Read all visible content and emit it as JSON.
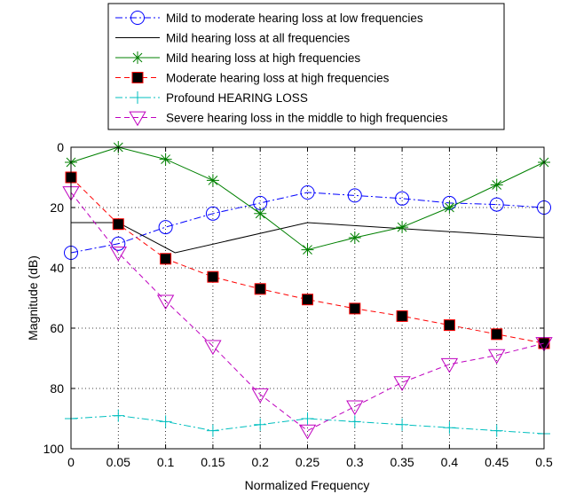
{
  "chart_data": {
    "type": "line",
    "xlabel": "Normalized Frequency",
    "ylabel": "Magnitude (dB)",
    "xlim": [
      0,
      0.5
    ],
    "ylim": [
      0,
      100
    ],
    "y_reversed": true,
    "grid": true,
    "legend_position": "top",
    "x_ticks": [
      "0",
      "0.05",
      "0.1",
      "0.15",
      "0.2",
      "0.25",
      "0.3",
      "0.35",
      "0.4",
      "0.45",
      "0.5"
    ],
    "y_ticks": [
      "0",
      "20",
      "40",
      "60",
      "80",
      "100"
    ],
    "series": [
      {
        "name": "Mild to moderate hearing loss at low frequencies",
        "color": "#0000ff",
        "line_style": "dash-dot",
        "marker": "circle",
        "x": [
          0,
          0.05,
          0.1,
          0.15,
          0.2,
          0.25,
          0.3,
          0.35,
          0.4,
          0.45,
          0.5
        ],
        "y": [
          35,
          32,
          26.5,
          22,
          18.5,
          15,
          16,
          17,
          18.5,
          19,
          20
        ]
      },
      {
        "name": "Mild hearing loss at all frequencies",
        "color": "#000000",
        "line_style": "solid",
        "marker": "none",
        "x": [
          0,
          0.05,
          0.11,
          0.25,
          0.5
        ],
        "y": [
          25,
          25,
          35,
          25,
          30
        ]
      },
      {
        "name": "Mild hearing loss at high frequencies",
        "color": "#008000",
        "line_style": "solid",
        "marker": "star",
        "x": [
          0,
          0.05,
          0.1,
          0.15,
          0.2,
          0.25,
          0.3,
          0.35,
          0.4,
          0.45,
          0.5
        ],
        "y": [
          5,
          0,
          4,
          11,
          22,
          34,
          30,
          26.5,
          20,
          12.5,
          5
        ]
      },
      {
        "name": "Moderate hearing loss at high frequencies",
        "color": "#ff0000",
        "line_style": "dashed",
        "marker": "square",
        "marker_fill": "#000000",
        "x": [
          0,
          0.05,
          0.1,
          0.15,
          0.2,
          0.25,
          0.3,
          0.35,
          0.4,
          0.45,
          0.5
        ],
        "y": [
          10,
          25.5,
          37,
          43,
          47,
          50.5,
          53.5,
          56,
          59,
          62,
          65
        ]
      },
      {
        "name": "Profound HEARING LOSS",
        "color": "#00bfbf",
        "line_style": "dash-dot",
        "marker": "plus",
        "x": [
          0,
          0.05,
          0.1,
          0.15,
          0.2,
          0.25,
          0.3,
          0.35,
          0.4,
          0.45,
          0.5
        ],
        "y": [
          90,
          89,
          91,
          94,
          92,
          90,
          91,
          92,
          93,
          94,
          95
        ]
      },
      {
        "name": "Severe hearing loss in the middle to high frequencies",
        "color": "#bf00bf",
        "line_style": "dashed",
        "marker": "triangle-down",
        "x": [
          0,
          0.05,
          0.1,
          0.15,
          0.2,
          0.25,
          0.3,
          0.35,
          0.4,
          0.45,
          0.5
        ],
        "y": [
          15,
          35,
          51,
          66,
          82,
          94,
          86,
          78,
          72,
          69,
          65
        ]
      }
    ]
  }
}
